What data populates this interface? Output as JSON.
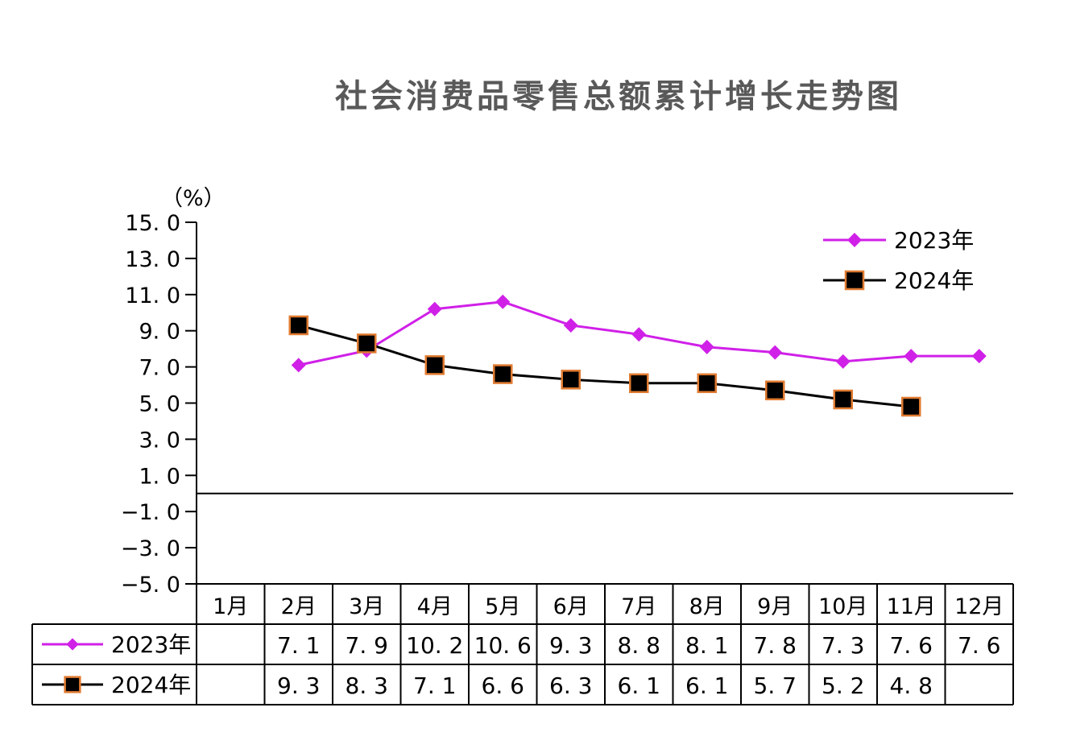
{
  "chart_data": {
    "type": "line",
    "title": "社会消费品零售总额累计增长走势图",
    "unit_label": "（%）",
    "categories": [
      "1月",
      "2月",
      "3月",
      "4月",
      "5月",
      "6月",
      "7月",
      "8月",
      "9月",
      "10月",
      "11月",
      "12月"
    ],
    "ylim": [
      -5.0,
      15.0
    ],
    "yticks": [
      "15. 0",
      "13. 0",
      "11. 0",
      "9. 0",
      "7. 0",
      "5. 0",
      "3. 0",
      "1. 0",
      "−1. 0",
      "−3. 0",
      "−5. 0"
    ],
    "legend_position": "top-right",
    "series": [
      {
        "name": "2023年",
        "color": "#d020e8",
        "marker": "diamond",
        "values": [
          null,
          7.1,
          7.9,
          10.2,
          10.6,
          9.3,
          8.8,
          8.1,
          7.8,
          7.3,
          7.6,
          7.6
        ],
        "labels": [
          "",
          "7. 1",
          "7. 9",
          "10. 2",
          "10. 6",
          "9. 3",
          "8. 8",
          "8. 1",
          "7. 8",
          "7. 3",
          "7. 6",
          "7. 6"
        ]
      },
      {
        "name": "2024年",
        "color": "#000000",
        "marker": "square",
        "marker_edge": "#e07a30",
        "values": [
          null,
          9.3,
          8.3,
          7.1,
          6.6,
          6.3,
          6.1,
          6.1,
          5.7,
          5.2,
          4.8,
          null
        ],
        "labels": [
          "",
          "9. 3",
          "8. 3",
          "7. 1",
          "6. 6",
          "6. 3",
          "6. 1",
          "6. 1",
          "5. 7",
          "5. 2",
          "4. 8",
          ""
        ]
      }
    ]
  }
}
